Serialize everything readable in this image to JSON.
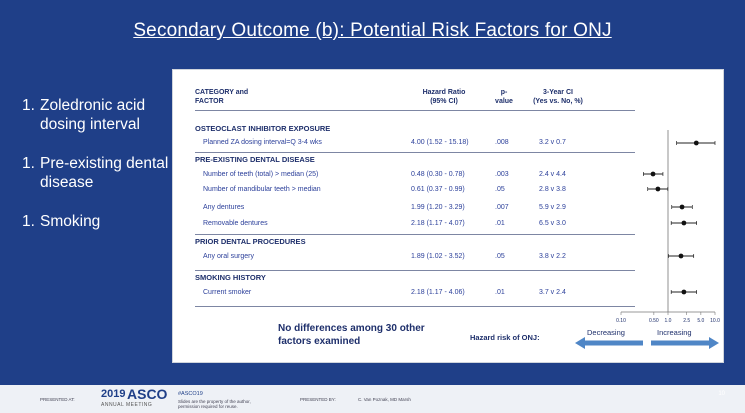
{
  "title": "Secondary Outcome (b): Potential Risk Factors for ONJ",
  "bullets": [
    {
      "num": "1.",
      "text": "Zoledronic acid dosing interval"
    },
    {
      "num": "1.",
      "text": "Pre-existing dental disease"
    },
    {
      "num": "1.",
      "text": "Smoking"
    }
  ],
  "table": {
    "headers": {
      "category_line1": "CATEGORY and",
      "category_line2": "FACTOR",
      "hr_line1": "Hazard Ratio",
      "hr_line2": "(95% CI)",
      "p_line1": "p-",
      "p_line2": "value",
      "ci_line1": "3-Year CI",
      "ci_line2": "(Yes vs. No, %)"
    },
    "categories": [
      "OSTEOCLAST INHIBITOR EXPOSURE",
      "PRE-EXISTING DENTAL DISEASE",
      "PRIOR DENTAL PROCEDURES",
      "SMOKING HISTORY"
    ],
    "rows": [
      {
        "factor": "Planned ZA dosing interval=Q 3-4 wks",
        "hr": "4.00 (1.52 - 15.18)",
        "p": ".008",
        "ci": "3.2 v 0.7",
        "hr_value": 4.0,
        "lo": 1.52,
        "hi": 10
      },
      {
        "factor": "Number of teeth (total) > median (25)",
        "hr": "0.48 (0.30 - 0.78)",
        "p": ".003",
        "ci": "2.4 v 4.4",
        "hr_value": 0.48,
        "lo": 0.3,
        "hi": 0.78
      },
      {
        "factor": "Number of mandibular teeth > median",
        "hr": "0.61 (0.37 - 0.99)",
        "p": ".05",
        "ci": "2.8 v 3.8",
        "hr_value": 0.61,
        "lo": 0.37,
        "hi": 0.99
      },
      {
        "factor": "Any dentures",
        "hr": "1.99 (1.20 - 3.29)",
        "p": ".007",
        "ci": "5.9 v 2.9",
        "hr_value": 1.99,
        "lo": 1.2,
        "hi": 3.29
      },
      {
        "factor": "Removable dentures",
        "hr": "2.18 (1.17 - 4.07)",
        "p": ".01",
        "ci": "6.5 v 3.0",
        "hr_value": 2.18,
        "lo": 1.17,
        "hi": 4.07
      },
      {
        "factor": "Any oral surgery",
        "hr": "1.89 (1.02 - 3.52)",
        "p": ".05",
        "ci": "3.8 v 2.2",
        "hr_value": 1.89,
        "lo": 1.02,
        "hi": 3.52
      },
      {
        "factor": "Current smoker",
        "hr": "2.18 (1.17 - 4.06)",
        "p": ".01",
        "ci": "3.7 v 2.4",
        "hr_value": 2.18,
        "lo": 1.17,
        "hi": 4.06
      }
    ]
  },
  "forest_plot": {
    "scale": "log",
    "tick_labels": [
      "0.10",
      "0.50",
      "1.0",
      "2.5",
      "5.0",
      "10.0"
    ],
    "tick_values": [
      0.1,
      0.5,
      1.0,
      2.5,
      5.0,
      10.0
    ],
    "reference": 1.0
  },
  "footnote": "No differences among 30 other factors examined",
  "hazard_label": "Hazard risk of ONJ:",
  "direction": {
    "left": "Decreasing",
    "right": "Increasing"
  },
  "colors": {
    "background": "#1f3f88",
    "panel": "#ffffff",
    "text_dark": "#1e2f6b",
    "text_blue": "#2b3f9a",
    "arrow": "#4f86c6"
  },
  "footer": {
    "presented_at": "PRESENTED AT:",
    "year": "2019",
    "asco": "ASCO",
    "annual": "ANNUAL MEETING",
    "hashtag": "#ASCO19",
    "hashtag_note": "Slides are the property of the author, permission required for reuse.",
    "presented_by": "PRESENTED BY:",
    "presenter": "C. Van Poznak, MD Marsh",
    "page": "10"
  }
}
